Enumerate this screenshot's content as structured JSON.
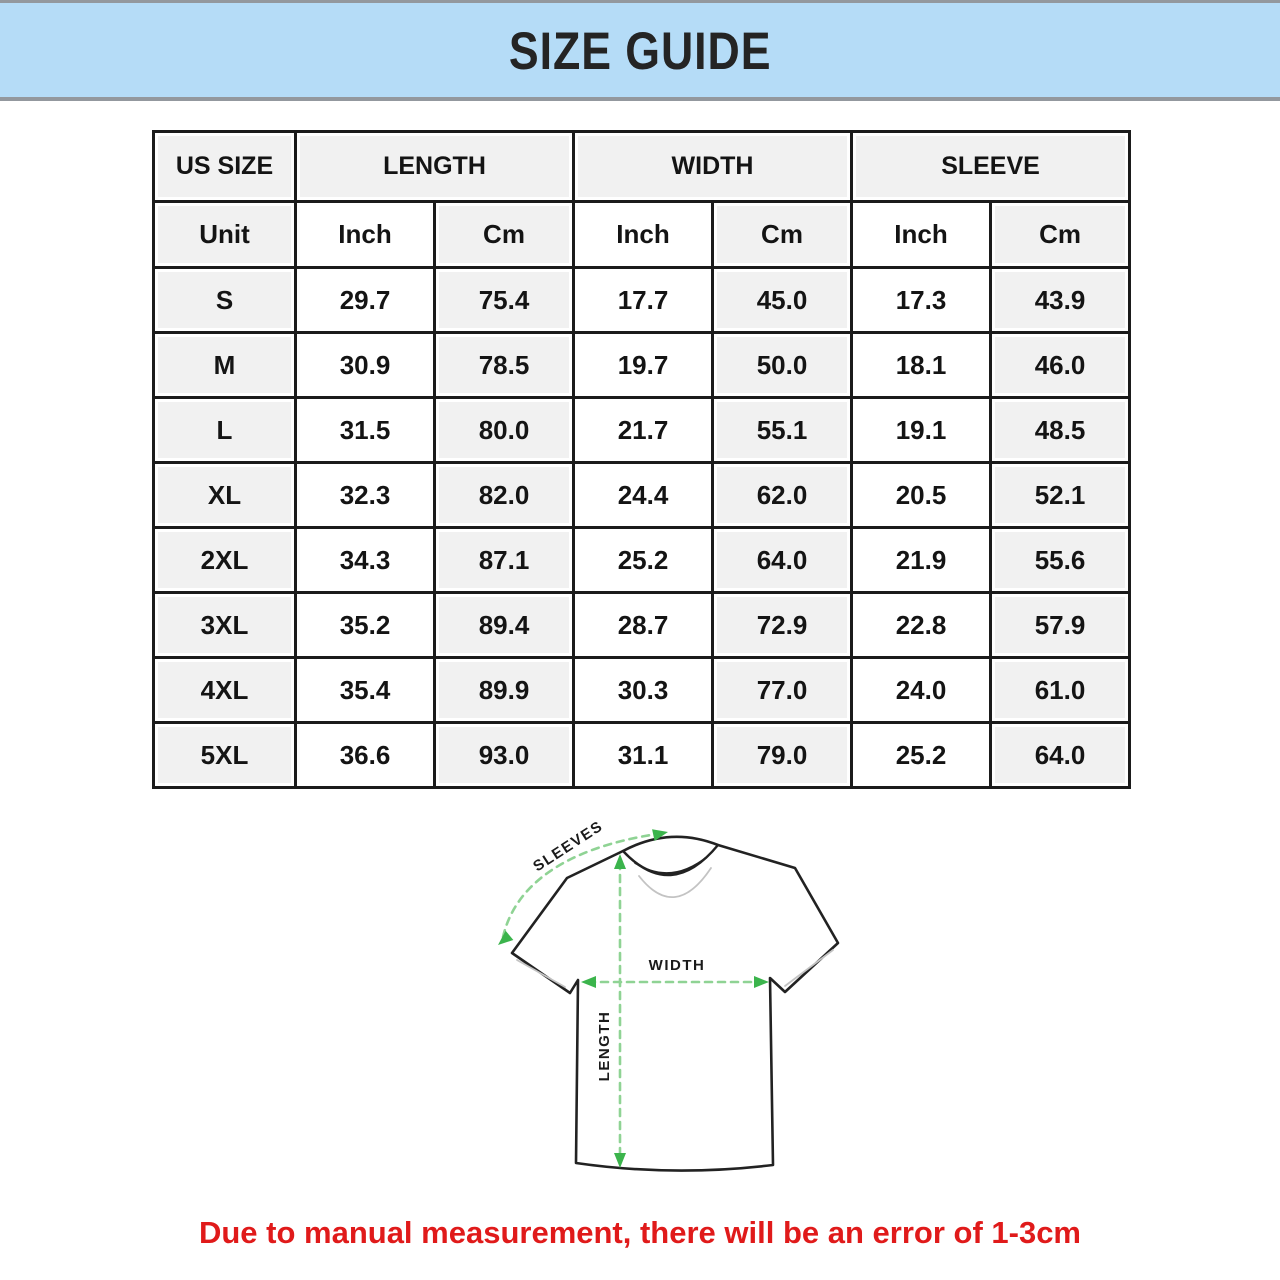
{
  "banner": {
    "title": "SIZE GUIDE"
  },
  "table": {
    "group_headers": [
      "US SIZE",
      "LENGTH",
      "WIDTH",
      "SLEEVE"
    ],
    "unit_row": [
      "Unit",
      "Inch",
      "Cm",
      "Inch",
      "Cm",
      "Inch",
      "Cm"
    ],
    "rows": [
      {
        "size": "S",
        "values": [
          "29.7",
          "75.4",
          "17.7",
          "45.0",
          "17.3",
          "43.9"
        ]
      },
      {
        "size": "M",
        "values": [
          "30.9",
          "78.5",
          "19.7",
          "50.0",
          "18.1",
          "46.0"
        ]
      },
      {
        "size": "L",
        "values": [
          "31.5",
          "80.0",
          "21.7",
          "55.1",
          "19.1",
          "48.5"
        ]
      },
      {
        "size": "XL",
        "values": [
          "32.3",
          "82.0",
          "24.4",
          "62.0",
          "20.5",
          "52.1"
        ]
      },
      {
        "size": "2XL",
        "values": [
          "34.3",
          "87.1",
          "25.2",
          "64.0",
          "21.9",
          "55.6"
        ]
      },
      {
        "size": "3XL",
        "values": [
          "35.2",
          "89.4",
          "28.7",
          "72.9",
          "22.8",
          "57.9"
        ]
      },
      {
        "size": "4XL",
        "values": [
          "35.4",
          "89.9",
          "30.3",
          "77.0",
          "24.0",
          "61.0"
        ]
      },
      {
        "size": "5XL",
        "values": [
          "36.6",
          "93.0",
          "31.1",
          "79.0",
          "25.2",
          "64.0"
        ]
      }
    ]
  },
  "diagram": {
    "sleeves_label": "SLEEVES",
    "width_label": "WIDTH",
    "length_label": "LENGTH"
  },
  "disclaimer": "Due to manual measurement, there will be an error of 1-3cm",
  "colors": {
    "banner_bg": "#b5dcf7",
    "banner_edge": "#93989e",
    "cell_gray": "#f1f1f1",
    "table_border": "#1b1b1b",
    "arrow_green": "#3bb44c",
    "dash_green": "#8fd394",
    "disclaimer_red": "#e01a1a"
  }
}
